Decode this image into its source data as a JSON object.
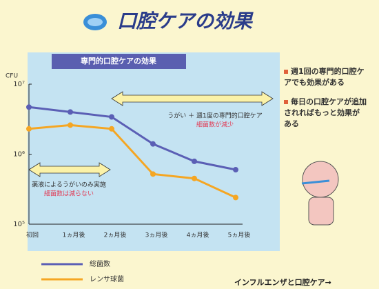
{
  "chart_data": {
    "type": "line",
    "title": "口腔ケアの効果",
    "subtitle": "専門的口腔ケアの効果",
    "y_label": "CFU",
    "categories": [
      "初回",
      "1ヵ月後",
      "2ヵ月後",
      "3ヵ月後",
      "4ヵ月後",
      "5ヵ月後"
    ],
    "series": [
      {
        "name": "総菌数",
        "color": "#5b5fb5",
        "values": [
          4700000,
          4000000,
          3400000,
          1400000,
          790000,
          600000
        ]
      },
      {
        "name": "レンサ球菌",
        "color": "#f5a623",
        "values": [
          2300000,
          2600000,
          2300000,
          520000,
          450000,
          240000
        ]
      }
    ],
    "log_scale": true,
    "ylim": [
      100000,
      10000000
    ],
    "yticks": [
      {
        "value": 100000,
        "label": "10⁵"
      },
      {
        "value": 1000000,
        "label": "10⁶"
      },
      {
        "value": 10000000,
        "label": "10⁷"
      }
    ],
    "annotations": [
      {
        "text": "うがい ＋ 週1度の専門的口腔ケア",
        "color": "#333333"
      },
      {
        "text": "細菌数が減少",
        "color": "#e0405a"
      },
      {
        "text": "薬液によるうがいのみ実施",
        "color": "#333333"
      },
      {
        "text": "細菌数は減らない",
        "color": "#e0405a"
      }
    ]
  },
  "bullets": [
    "週1回の専門的口腔ケアでも効果がある",
    "毎日の口腔ケアが追加されればもっと効果がある"
  ],
  "footer": "インフルエンザと口腔ケア→"
}
